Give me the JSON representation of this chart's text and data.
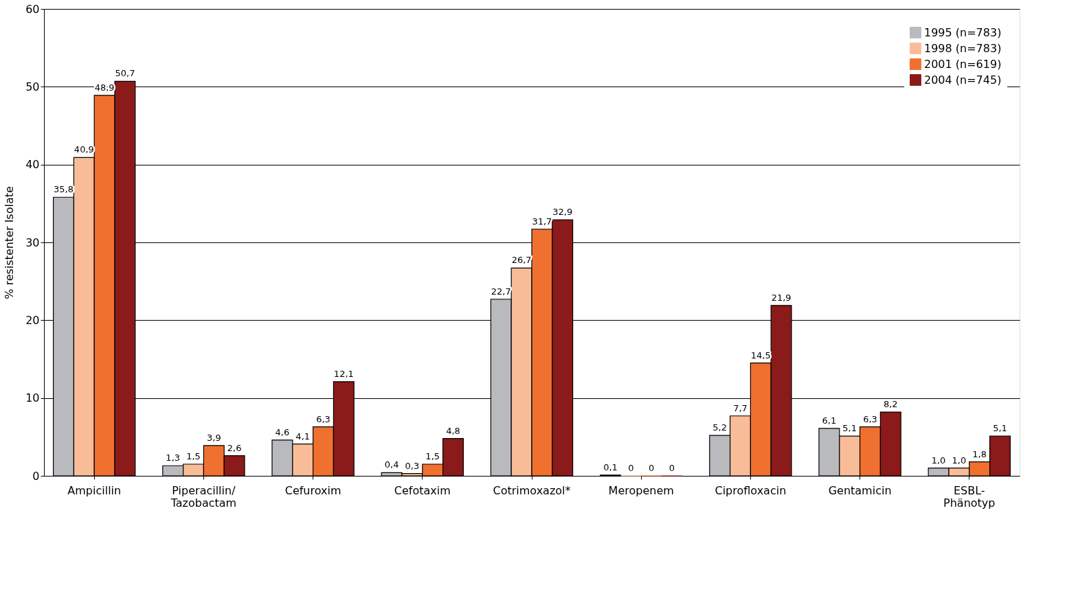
{
  "chart_data": {
    "type": "bar",
    "ylabel": "% resistenter Isolate",
    "categories": [
      "Ampicillin",
      "Piperacillin/Tazobactam",
      "Cefuroxim",
      "Cefotaxim",
      "Cotrimoxazol*",
      "Meropenem",
      "Ciprofloxacin",
      "Gentamicin",
      "ESBL-Phänotyp"
    ],
    "series": [
      {
        "name": "1995 (n=783)",
        "color": "#b9babd",
        "values": [
          35.8,
          1.3,
          4.6,
          0.4,
          22.7,
          0.1,
          5.2,
          6.1,
          1.0
        ],
        "value_labels": [
          "35,8",
          "1,3",
          "4,6",
          "0,4",
          "22,7",
          "0,1",
          "5,2",
          "6,1",
          "1,0"
        ]
      },
      {
        "name": "1998 (n=783)",
        "color": "#f9bc98",
        "values": [
          40.9,
          1.5,
          4.1,
          0.3,
          26.7,
          0,
          7.7,
          5.1,
          1.0
        ],
        "value_labels": [
          "40,9",
          "1,5",
          "4,1",
          "0,3",
          "26,7",
          "0",
          "7,7",
          "5,1",
          "1,0"
        ]
      },
      {
        "name": "2001 (n=619)",
        "color": "#f07030",
        "values": [
          48.9,
          3.9,
          6.3,
          1.5,
          31.7,
          0,
          14.5,
          6.3,
          1.8
        ],
        "value_labels": [
          "48,9",
          "3,9",
          "6,3",
          "1,5",
          "31,7",
          "0",
          "14,5",
          "6,3",
          "1,8"
        ]
      },
      {
        "name": "2004 (n=745)",
        "color": "#8b1a1a",
        "values": [
          50.7,
          2.6,
          12.1,
          4.8,
          32.9,
          0,
          21.9,
          8.2,
          5.1
        ],
        "value_labels": [
          "50,7",
          "2,6",
          "12,1",
          "4,8",
          "32,9",
          "0",
          "21,9",
          "8,2",
          "5,1"
        ]
      }
    ],
    "ylim": [
      0,
      60
    ],
    "yticks": [
      0,
      10,
      20,
      30,
      40,
      50,
      60
    ],
    "grid": "y",
    "legend": "top right"
  }
}
